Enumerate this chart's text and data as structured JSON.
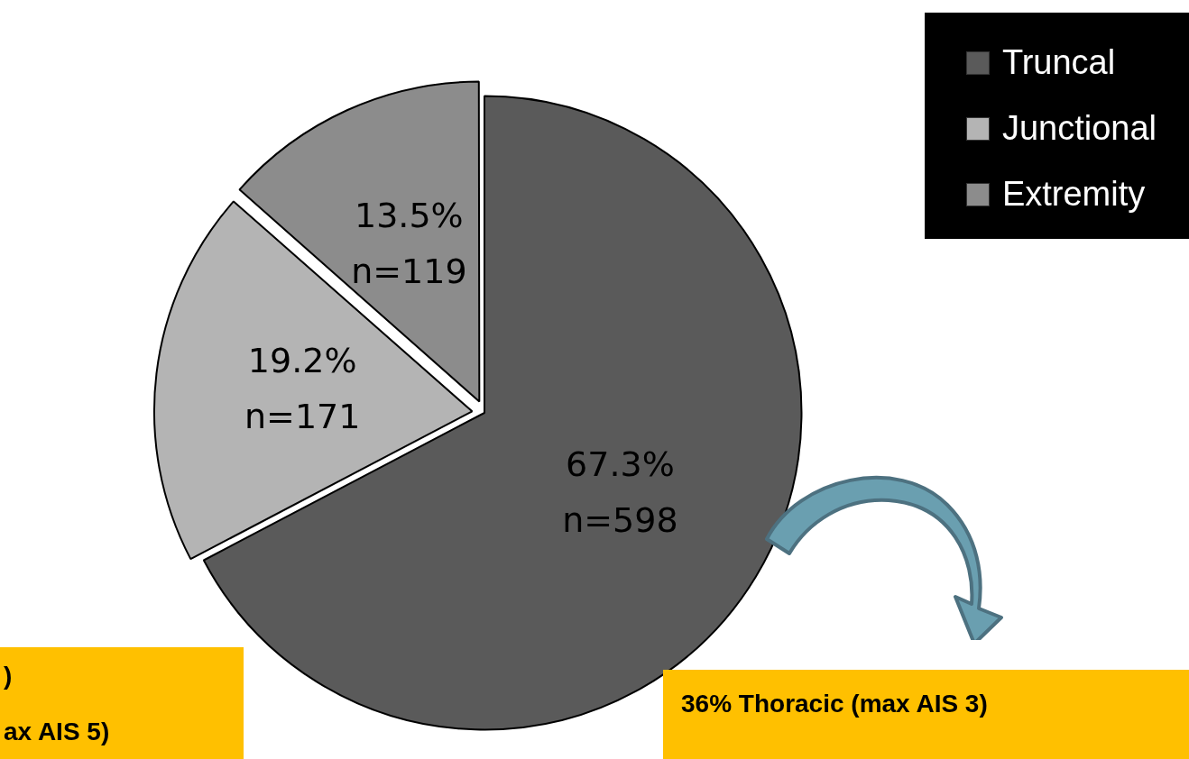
{
  "chart_data": {
    "type": "pie",
    "categories": [
      "Truncal",
      "Junctional",
      "Extremity"
    ],
    "values": [
      67.3,
      19.2,
      13.5
    ],
    "colors": [
      "#5a5a5a",
      "#b4b4b4",
      "#8c8c8c"
    ],
    "value_labels": [
      "67.3%\nn=598",
      "19.2%\nn=171",
      "13.5%\nn=119"
    ],
    "legend": "top right",
    "annotations": [
      ")",
      "ax AIS 5)",
      "36% Thoracic (max AIS 3)"
    ]
  }
}
